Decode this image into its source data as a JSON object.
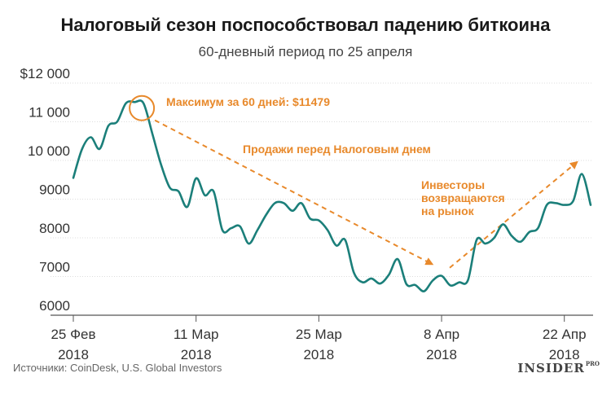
{
  "header": {
    "title": "Налоговый сезон поспособствовал падению биткоина",
    "subtitle": "60-дневный период по 25 апреля"
  },
  "footer": {
    "source": "Источники: CoinDesk, U.S. Global Investors",
    "logo_main": "INSIDER",
    "logo_sup": "PRO"
  },
  "colors": {
    "line": "#1b7f7a",
    "accent": "#e8892b",
    "axis": "#999999",
    "grid": "#dddddd"
  },
  "chart_data": {
    "type": "line",
    "x_unit": "date",
    "ylim": [
      6000,
      12000
    ],
    "y_ticks": [
      {
        "value": 6000,
        "label": "6000"
      },
      {
        "value": 7000,
        "label": "7000"
      },
      {
        "value": 8000,
        "label": "8000"
      },
      {
        "value": 9000,
        "label": "9000"
      },
      {
        "value": 10000,
        "label": "10 000"
      },
      {
        "value": 11000,
        "label": "11 000"
      },
      {
        "value": 12000,
        "label": "$12 000"
      }
    ],
    "x_ticks": [
      {
        "date": "2018-02-25",
        "line1": "25 Фев",
        "line2": "2018"
      },
      {
        "date": "2018-03-11",
        "line1": "11 Мар",
        "line2": "2018"
      },
      {
        "date": "2018-03-25",
        "line1": "25 Мар",
        "line2": "2018"
      },
      {
        "date": "2018-04-08",
        "line1": "8 Апр",
        "line2": "2018"
      },
      {
        "date": "2018-04-22",
        "line1": "22 Апр",
        "line2": "2018"
      }
    ],
    "grid": true,
    "points": [
      {
        "x": "2018-02-25",
        "y": 9550
      },
      {
        "x": "2018-02-26",
        "y": 10300
      },
      {
        "x": "2018-02-27",
        "y": 10600
      },
      {
        "x": "2018-02-28",
        "y": 10300
      },
      {
        "x": "2018-03-01",
        "y": 10900
      },
      {
        "x": "2018-03-02",
        "y": 11000
      },
      {
        "x": "2018-03-03",
        "y": 11480
      },
      {
        "x": "2018-03-04",
        "y": 11510
      },
      {
        "x": "2018-03-05",
        "y": 11479
      },
      {
        "x": "2018-03-06",
        "y": 10700
      },
      {
        "x": "2018-03-07",
        "y": 9900
      },
      {
        "x": "2018-03-08",
        "y": 9300
      },
      {
        "x": "2018-03-09",
        "y": 9200
      },
      {
        "x": "2018-03-10",
        "y": 8800
      },
      {
        "x": "2018-03-11",
        "y": 9540
      },
      {
        "x": "2018-03-12",
        "y": 9100
      },
      {
        "x": "2018-03-13",
        "y": 9200
      },
      {
        "x": "2018-03-14",
        "y": 8200
      },
      {
        "x": "2018-03-15",
        "y": 8250
      },
      {
        "x": "2018-03-16",
        "y": 8300
      },
      {
        "x": "2018-03-17",
        "y": 7850
      },
      {
        "x": "2018-03-18",
        "y": 8200
      },
      {
        "x": "2018-03-19",
        "y": 8600
      },
      {
        "x": "2018-03-20",
        "y": 8900
      },
      {
        "x": "2018-03-21",
        "y": 8900
      },
      {
        "x": "2018-03-22",
        "y": 8700
      },
      {
        "x": "2018-03-23",
        "y": 8900
      },
      {
        "x": "2018-03-24",
        "y": 8500
      },
      {
        "x": "2018-03-25",
        "y": 8450
      },
      {
        "x": "2018-03-26",
        "y": 8200
      },
      {
        "x": "2018-03-27",
        "y": 7800
      },
      {
        "x": "2018-03-28",
        "y": 7950
      },
      {
        "x": "2018-03-29",
        "y": 7100
      },
      {
        "x": "2018-03-30",
        "y": 6850
      },
      {
        "x": "2018-03-31",
        "y": 6950
      },
      {
        "x": "2018-04-01",
        "y": 6820
      },
      {
        "x": "2018-04-02",
        "y": 7050
      },
      {
        "x": "2018-04-03",
        "y": 7450
      },
      {
        "x": "2018-04-04",
        "y": 6800
      },
      {
        "x": "2018-04-05",
        "y": 6780
      },
      {
        "x": "2018-04-06",
        "y": 6620
      },
      {
        "x": "2018-04-07",
        "y": 6900
      },
      {
        "x": "2018-04-08",
        "y": 7020
      },
      {
        "x": "2018-04-09",
        "y": 6770
      },
      {
        "x": "2018-04-10",
        "y": 6850
      },
      {
        "x": "2018-04-11",
        "y": 6900
      },
      {
        "x": "2018-04-12",
        "y": 7950
      },
      {
        "x": "2018-04-13",
        "y": 7850
      },
      {
        "x": "2018-04-14",
        "y": 8000
      },
      {
        "x": "2018-04-15",
        "y": 8350
      },
      {
        "x": "2018-04-16",
        "y": 8050
      },
      {
        "x": "2018-04-17",
        "y": 7900
      },
      {
        "x": "2018-04-18",
        "y": 8150
      },
      {
        "x": "2018-04-19",
        "y": 8250
      },
      {
        "x": "2018-04-20",
        "y": 8850
      },
      {
        "x": "2018-04-21",
        "y": 8900
      },
      {
        "x": "2018-04-22",
        "y": 8850
      },
      {
        "x": "2018-04-23",
        "y": 8950
      },
      {
        "x": "2018-04-24",
        "y": 9650
      },
      {
        "x": "2018-04-25",
        "y": 8850
      }
    ],
    "annotations": {
      "peak": {
        "label": "Максимум за 60 дней: $11479",
        "date": "2018-03-05",
        "value": 11479
      },
      "down_arrow": {
        "label": "Продажи перед Налоговым днем",
        "from": {
          "x": "2018-03-05",
          "y": 11250
        },
        "to": {
          "x": "2018-04-06",
          "y": 7150
        }
      },
      "up_arrow": {
        "label_lines": [
          "Инвесторы",
          "возвращаются",
          "на рынок"
        ],
        "from": {
          "x": "2018-04-08",
          "y": 7100
        },
        "to": {
          "x": "2018-04-24",
          "y": 10000
        }
      }
    }
  }
}
